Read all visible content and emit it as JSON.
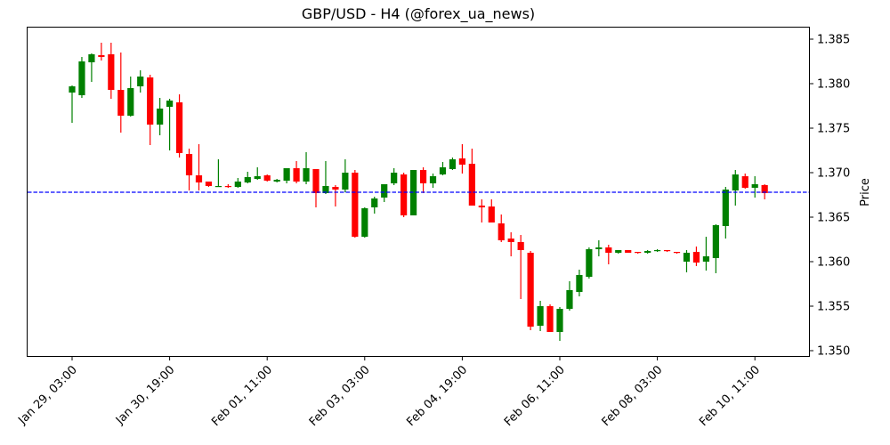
{
  "chart_data": {
    "type": "candlestick",
    "title": "GBP/USD - H4 (@forex_ua_news)",
    "xlabel": "",
    "ylabel": "Price",
    "ylim": [
      1.3493,
      1.3863
    ],
    "yticks": [
      "1.350",
      "1.355",
      "1.360",
      "1.365",
      "1.370",
      "1.375",
      "1.380",
      "1.385"
    ],
    "ytick_values": [
      1.35,
      1.355,
      1.36,
      1.365,
      1.37,
      1.375,
      1.38,
      1.385
    ],
    "xticks": [
      {
        "index": 0,
        "label": "Jan 29, 03:00"
      },
      {
        "index": 10,
        "label": "Jan 30, 19:00"
      },
      {
        "index": 20,
        "label": "Feb 01, 11:00"
      },
      {
        "index": 30,
        "label": "Feb 03, 03:00"
      },
      {
        "index": 40,
        "label": "Feb 04, 19:00"
      },
      {
        "index": 50,
        "label": "Feb 06, 11:00"
      },
      {
        "index": 60,
        "label": "Feb 08, 03:00"
      },
      {
        "index": 70,
        "label": "Feb 10, 11:00"
      }
    ],
    "grid": false,
    "up_color": "#008000",
    "down_color": "#ff0000",
    "hline": {
      "value": 1.3678,
      "color": "#0000ff",
      "style": "dashed"
    },
    "series": [
      {
        "name": "GBP/USD H4",
        "ohlc": [
          [
            1.379,
            1.3798,
            1.3756,
            1.3797
          ],
          [
            1.3787,
            1.383,
            1.3784,
            1.3825
          ],
          [
            1.3824,
            1.3834,
            1.3802,
            1.3833
          ],
          [
            1.3832,
            1.3846,
            1.3826,
            1.383
          ],
          [
            1.3833,
            1.3846,
            1.3783,
            1.3793
          ],
          [
            1.3793,
            1.3835,
            1.3745,
            1.3764
          ],
          [
            1.3764,
            1.3808,
            1.3763,
            1.3795
          ],
          [
            1.3797,
            1.3815,
            1.379,
            1.3808
          ],
          [
            1.3807,
            1.381,
            1.3731,
            1.3754
          ],
          [
            1.3754,
            1.3784,
            1.3742,
            1.3772
          ],
          [
            1.3774,
            1.3783,
            1.3725,
            1.3781
          ],
          [
            1.3779,
            1.3788,
            1.3717,
            1.3722
          ],
          [
            1.3721,
            1.3727,
            1.368,
            1.3697
          ],
          [
            1.3697,
            1.3732,
            1.368,
            1.3689
          ],
          [
            1.369,
            1.369,
            1.3684,
            1.3685
          ],
          [
            1.3684,
            1.3715,
            1.3684,
            1.3685
          ],
          [
            1.3685,
            1.3687,
            1.3683,
            1.3684
          ],
          [
            1.3684,
            1.3694,
            1.3683,
            1.369
          ],
          [
            1.3689,
            1.3701,
            1.3688,
            1.3695
          ],
          [
            1.3693,
            1.3706,
            1.3692,
            1.3696
          ],
          [
            1.3697,
            1.3698,
            1.369,
            1.3691
          ],
          [
            1.369,
            1.3693,
            1.3689,
            1.3692
          ],
          [
            1.3691,
            1.3705,
            1.3688,
            1.3705
          ],
          [
            1.3705,
            1.3713,
            1.3688,
            1.369
          ],
          [
            1.369,
            1.3723,
            1.3687,
            1.3705
          ],
          [
            1.3704,
            1.3704,
            1.3661,
            1.3677
          ],
          [
            1.3677,
            1.3713,
            1.3676,
            1.3685
          ],
          [
            1.3684,
            1.3686,
            1.3662,
            1.3681
          ],
          [
            1.3681,
            1.3715,
            1.3678,
            1.37
          ],
          [
            1.37,
            1.3703,
            1.3627,
            1.3628
          ],
          [
            1.3628,
            1.3661,
            1.3627,
            1.366
          ],
          [
            1.3661,
            1.3673,
            1.3654,
            1.3671
          ],
          [
            1.3672,
            1.3687,
            1.3667,
            1.3687
          ],
          [
            1.3688,
            1.3705,
            1.3686,
            1.37
          ],
          [
            1.3698,
            1.37,
            1.365,
            1.3652
          ],
          [
            1.3652,
            1.3703,
            1.3652,
            1.3703
          ],
          [
            1.3703,
            1.3706,
            1.3677,
            1.3688
          ],
          [
            1.3688,
            1.3699,
            1.3683,
            1.3696
          ],
          [
            1.3698,
            1.3712,
            1.3697,
            1.3706
          ],
          [
            1.3704,
            1.3717,
            1.3703,
            1.3715
          ],
          [
            1.3716,
            1.3732,
            1.3699,
            1.3709
          ],
          [
            1.371,
            1.3727,
            1.3663,
            1.3663
          ],
          [
            1.3663,
            1.367,
            1.3644,
            1.3661
          ],
          [
            1.3662,
            1.367,
            1.3644,
            1.3644
          ],
          [
            1.3643,
            1.3653,
            1.3622,
            1.3624
          ],
          [
            1.3626,
            1.3633,
            1.3606,
            1.3622
          ],
          [
            1.3622,
            1.363,
            1.3558,
            1.3613
          ],
          [
            1.361,
            1.3612,
            1.3523,
            1.3527
          ],
          [
            1.3528,
            1.3556,
            1.3522,
            1.355
          ],
          [
            1.355,
            1.3552,
            1.3521,
            1.3521
          ],
          [
            1.3521,
            1.3549,
            1.3511,
            1.3547
          ],
          [
            1.3547,
            1.3578,
            1.3545,
            1.3568
          ],
          [
            1.3566,
            1.3591,
            1.3561,
            1.3585
          ],
          [
            1.3583,
            1.3616,
            1.3581,
            1.3614
          ],
          [
            1.3614,
            1.3624,
            1.3606,
            1.3616
          ],
          [
            1.3616,
            1.3619,
            1.3597,
            1.361
          ],
          [
            1.361,
            1.3613,
            1.3609,
            1.3613
          ],
          [
            1.3613,
            1.3613,
            1.361,
            1.361
          ],
          [
            1.3611,
            1.3611,
            1.3609,
            1.361
          ],
          [
            1.361,
            1.3613,
            1.3609,
            1.3612
          ],
          [
            1.3612,
            1.3614,
            1.3611,
            1.3613
          ],
          [
            1.3613,
            1.3613,
            1.3611,
            1.3612
          ],
          [
            1.3611,
            1.3611,
            1.3609,
            1.361
          ],
          [
            1.36,
            1.3613,
            1.3588,
            1.361
          ],
          [
            1.3611,
            1.3617,
            1.3595,
            1.3599
          ],
          [
            1.36,
            1.3628,
            1.359,
            1.3606
          ],
          [
            1.3604,
            1.3642,
            1.3587,
            1.3641
          ],
          [
            1.364,
            1.3684,
            1.3626,
            1.3681
          ],
          [
            1.368,
            1.3703,
            1.3663,
            1.3698
          ],
          [
            1.3696,
            1.3699,
            1.3682,
            1.3683
          ],
          [
            1.3683,
            1.3696,
            1.3672,
            1.3687
          ],
          [
            1.3686,
            1.3687,
            1.367,
            1.3677
          ]
        ]
      }
    ]
  }
}
